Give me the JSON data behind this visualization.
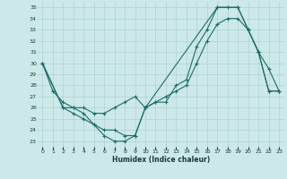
{
  "xlabel": "Humidex (Indice chaleur)",
  "xlim": [
    -0.5,
    23.5
  ],
  "ylim": [
    22.5,
    35.5
  ],
  "xticks": [
    0,
    1,
    2,
    3,
    4,
    5,
    6,
    7,
    8,
    9,
    10,
    11,
    12,
    13,
    14,
    15,
    16,
    17,
    18,
    19,
    20,
    21,
    22,
    23
  ],
  "yticks": [
    23,
    24,
    25,
    26,
    27,
    28,
    29,
    30,
    31,
    32,
    33,
    34,
    35
  ],
  "bg_color": "#cce8e8",
  "grid_color": "#aacccc",
  "line_color": "#1a6e6a",
  "line1_x": [
    0,
    2,
    3,
    4,
    5,
    6,
    7,
    8,
    9,
    10,
    11,
    12,
    13,
    14,
    15,
    16,
    17,
    18,
    19,
    20,
    21,
    22,
    23
  ],
  "line1_y": [
    30,
    26,
    25.5,
    25,
    24.5,
    23.5,
    23,
    23,
    23.5,
    26,
    26.5,
    26.5,
    28,
    28.5,
    31.5,
    33,
    35,
    35,
    35,
    33,
    31,
    29.5,
    27.5
  ],
  "line2_x": [
    0,
    2,
    3,
    4,
    5,
    6,
    7,
    8,
    9,
    10,
    11,
    12,
    13,
    14,
    15,
    16,
    17,
    18,
    19,
    20,
    21,
    22,
    23
  ],
  "line2_y": [
    30,
    26,
    26,
    26,
    25.5,
    25.5,
    26,
    26.5,
    27,
    26,
    26.5,
    27,
    27.5,
    28,
    30,
    32,
    33.5,
    34,
    34,
    33,
    31,
    27.5,
    27.5
  ],
  "line3_x": [
    0,
    1,
    2,
    3,
    4,
    5,
    6,
    7,
    8,
    9,
    10,
    17,
    19,
    20,
    21,
    22,
    23
  ],
  "line3_y": [
    30,
    27.5,
    26.5,
    26,
    25.5,
    24.5,
    24,
    24,
    23.5,
    23.5,
    26,
    35,
    35,
    33,
    31,
    27.5,
    27.5
  ],
  "figsize": [
    3.2,
    2.0
  ],
  "dpi": 100
}
